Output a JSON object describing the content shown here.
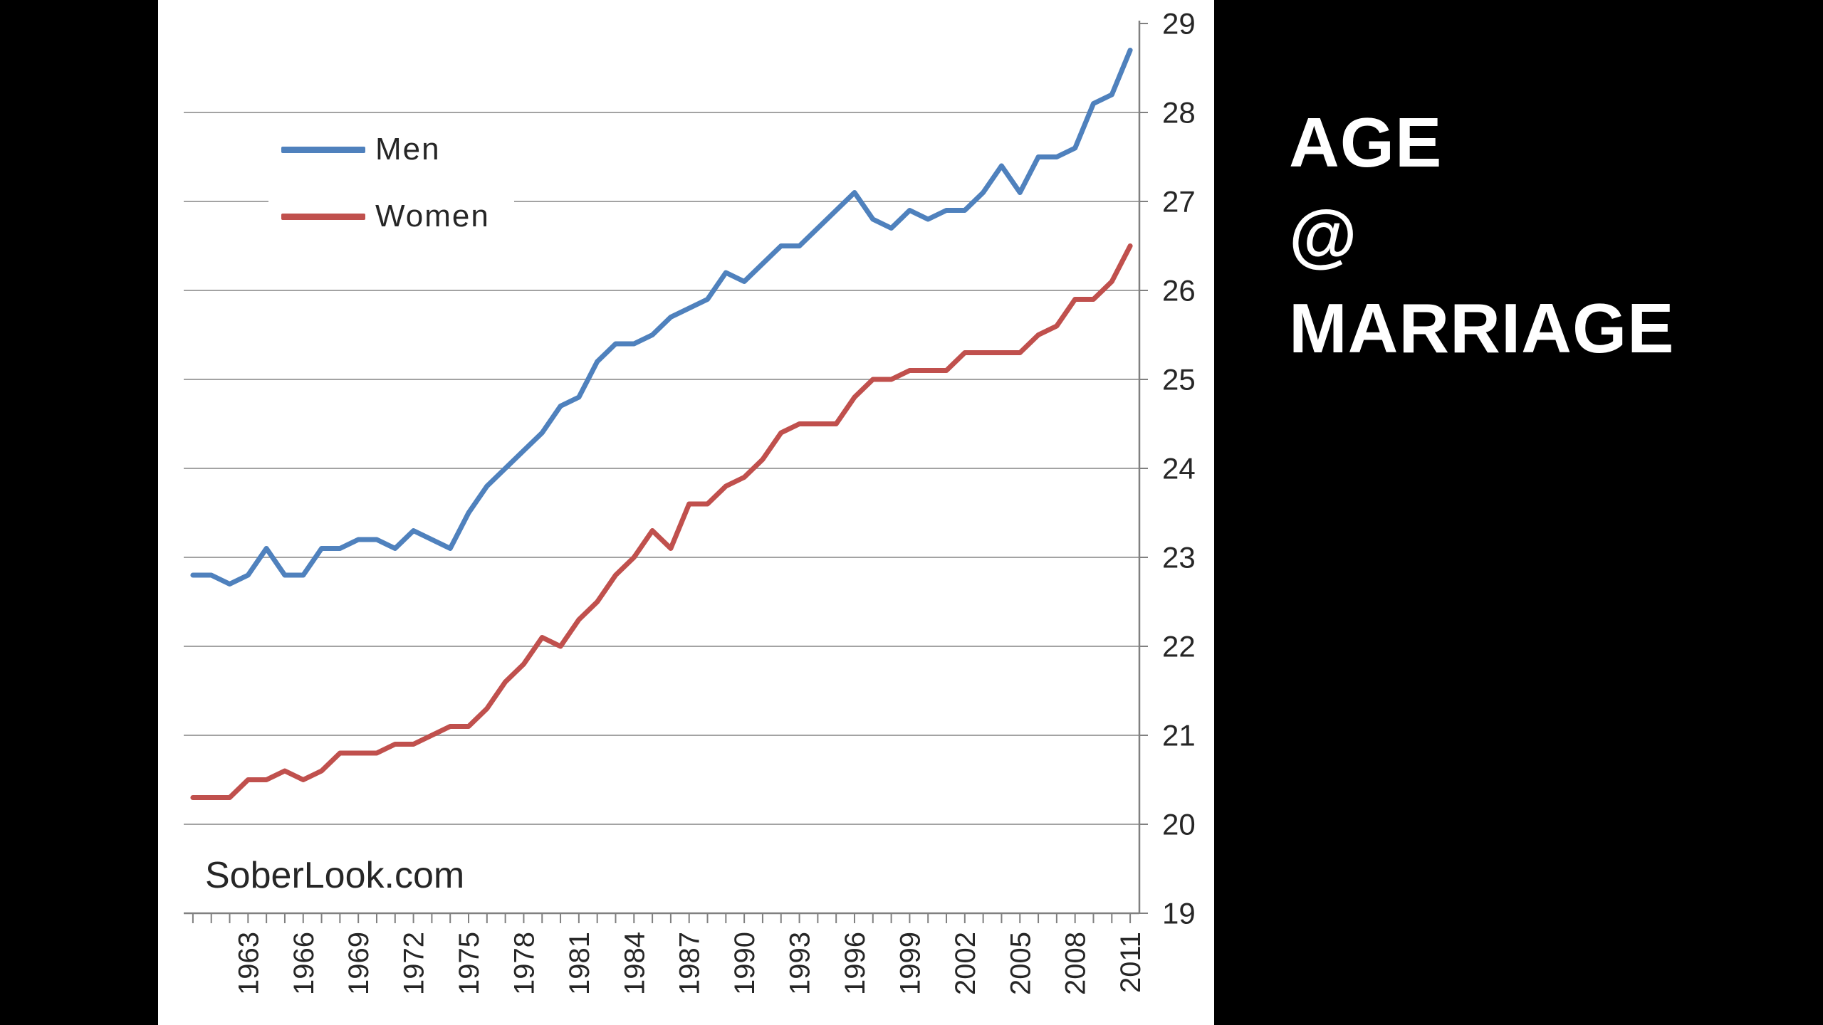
{
  "title": {
    "line1": "AGE",
    "line2": "@",
    "line3": "MARRIAGE"
  },
  "colors": {
    "background": "#000000",
    "panel": "#ffffff",
    "gridline": "#a3a3a3",
    "axis": "#808080",
    "text": "#262626",
    "title_text": "#ffffff",
    "men_line": "#4f81bd",
    "women_line": "#c0504d"
  },
  "chart_data": {
    "type": "line",
    "title": "",
    "xlabel": "",
    "ylabel": "",
    "source": "SoberLook.com",
    "grid": true,
    "legend_position": "top-left",
    "ylim": [
      19,
      29
    ],
    "y_ticks": [
      19,
      20,
      21,
      22,
      23,
      24,
      25,
      26,
      27,
      28,
      29
    ],
    "x_range": [
      1960,
      2011
    ],
    "x_tick_labels": [
      "1963",
      "1966",
      "1969",
      "1972",
      "1975",
      "1978",
      "1981",
      "1984",
      "1987",
      "1990",
      "1993",
      "1996",
      "1999",
      "2002",
      "2005",
      "2008",
      "2011"
    ],
    "x": [
      1960,
      1961,
      1962,
      1963,
      1964,
      1965,
      1966,
      1967,
      1968,
      1969,
      1970,
      1971,
      1972,
      1973,
      1974,
      1975,
      1976,
      1977,
      1978,
      1979,
      1980,
      1981,
      1982,
      1983,
      1984,
      1985,
      1986,
      1987,
      1988,
      1989,
      1990,
      1991,
      1992,
      1993,
      1994,
      1995,
      1996,
      1997,
      1998,
      1999,
      2000,
      2001,
      2002,
      2003,
      2004,
      2005,
      2006,
      2007,
      2008,
      2009,
      2010,
      2011
    ],
    "series": [
      {
        "name": "Men",
        "color": "#4f81bd",
        "values": [
          22.8,
          22.8,
          22.7,
          22.8,
          23.1,
          22.8,
          22.8,
          23.1,
          23.1,
          23.2,
          23.2,
          23.1,
          23.3,
          23.2,
          23.1,
          23.5,
          23.8,
          24.0,
          24.2,
          24.4,
          24.7,
          24.8,
          25.2,
          25.4,
          25.4,
          25.5,
          25.7,
          25.8,
          25.9,
          26.2,
          26.1,
          26.3,
          26.5,
          26.5,
          26.7,
          26.9,
          27.1,
          26.8,
          26.7,
          26.9,
          26.8,
          26.9,
          26.9,
          27.1,
          27.4,
          27.1,
          27.5,
          27.5,
          27.6,
          28.1,
          28.2,
          28.7
        ]
      },
      {
        "name": "Women",
        "color": "#c0504d",
        "values": [
          20.3,
          20.3,
          20.3,
          20.5,
          20.5,
          20.6,
          20.5,
          20.6,
          20.8,
          20.8,
          20.8,
          20.9,
          20.9,
          21.0,
          21.1,
          21.1,
          21.3,
          21.6,
          21.8,
          22.1,
          22.0,
          22.3,
          22.5,
          22.8,
          23.0,
          23.3,
          23.1,
          23.6,
          23.6,
          23.8,
          23.9,
          24.1,
          24.4,
          24.5,
          24.5,
          24.5,
          24.8,
          25.0,
          25.0,
          25.1,
          25.1,
          25.1,
          25.3,
          25.3,
          25.3,
          25.3,
          25.5,
          25.6,
          25.9,
          25.9,
          26.1,
          26.5
        ]
      }
    ]
  }
}
